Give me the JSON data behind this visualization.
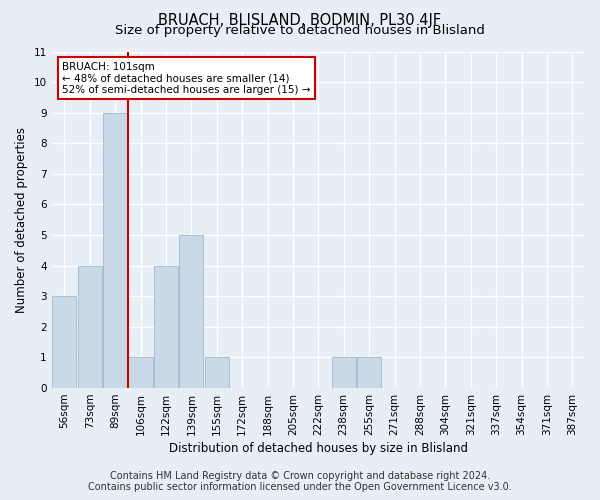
{
  "title": "BRUACH, BLISLAND, BODMIN, PL30 4JF",
  "subtitle": "Size of property relative to detached houses in Blisland",
  "xlabel": "Distribution of detached houses by size in Blisland",
  "ylabel": "Number of detached properties",
  "footer_line1": "Contains HM Land Registry data © Crown copyright and database right 2024.",
  "footer_line2": "Contains public sector information licensed under the Open Government Licence v3.0.",
  "categories": [
    "56sqm",
    "73sqm",
    "89sqm",
    "106sqm",
    "122sqm",
    "139sqm",
    "155sqm",
    "172sqm",
    "188sqm",
    "205sqm",
    "222sqm",
    "238sqm",
    "255sqm",
    "271sqm",
    "288sqm",
    "304sqm",
    "321sqm",
    "337sqm",
    "354sqm",
    "371sqm",
    "387sqm"
  ],
  "values": [
    3,
    4,
    9,
    1,
    4,
    5,
    1,
    0,
    0,
    0,
    0,
    1,
    1,
    0,
    0,
    0,
    0,
    0,
    0,
    0,
    0
  ],
  "bar_color": "#c9d9e8",
  "bar_edge_color": "#a8bfcf",
  "ylim": [
    0,
    11
  ],
  "yticks": [
    0,
    1,
    2,
    3,
    4,
    5,
    6,
    7,
    8,
    9,
    10,
    11
  ],
  "vline_color": "#cc0000",
  "annotation_text": "BRUACH: 101sqm\n← 48% of detached houses are smaller (14)\n52% of semi-detached houses are larger (15) →",
  "annotation_box_color": "#ffffff",
  "annotation_box_edge": "#cc0000",
  "bg_color": "#e8eef5",
  "plot_bg_color": "#e8eef5",
  "grid_color": "#ffffff",
  "title_fontsize": 10.5,
  "subtitle_fontsize": 9.5,
  "axis_label_fontsize": 8.5,
  "tick_fontsize": 7.5,
  "footer_fontsize": 7.0
}
